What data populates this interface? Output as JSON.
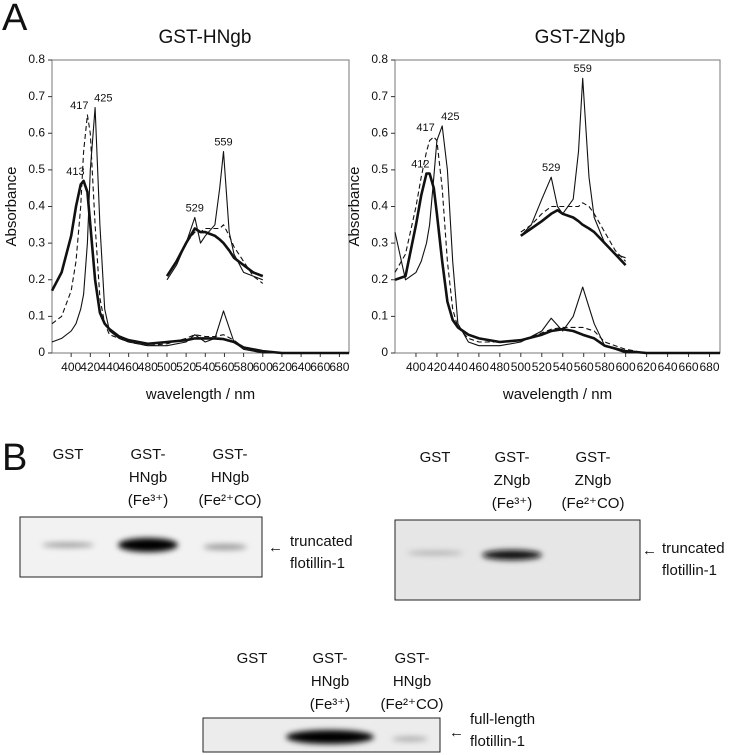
{
  "panel_labels": [
    "A",
    "B"
  ],
  "chart_data": [
    {
      "type": "line",
      "title": "GST-HNgb",
      "x_label": "wavelength / nm",
      "y_label": "Absorbance",
      "xlim": [
        380,
        690
      ],
      "ylim": [
        0,
        0.8
      ],
      "xticks": [
        400,
        420,
        440,
        460,
        480,
        500,
        520,
        540,
        560,
        580,
        600,
        620,
        640,
        660,
        680
      ],
      "yticks": [
        0,
        0.1,
        0.2,
        0.3,
        0.4,
        0.5,
        0.6,
        0.7,
        0.8
      ],
      "x": [
        380,
        390,
        400,
        405,
        410,
        413,
        417,
        420,
        425,
        430,
        435,
        440,
        450,
        460,
        480,
        500,
        520,
        529,
        540,
        550,
        559,
        570,
        580,
        600,
        620,
        640,
        660,
        680,
        690
      ],
      "series": [
        {
          "color": "#111111",
          "line_width": 2.6,
          "dash": false,
          "values": [
            0.17,
            0.22,
            0.32,
            0.4,
            0.46,
            0.47,
            0.44,
            0.35,
            0.2,
            0.11,
            0.08,
            0.065,
            0.045,
            0.035,
            0.025,
            0.03,
            0.035,
            0.04,
            0.04,
            0.04,
            0.038,
            0.03,
            0.015,
            0.005,
            0,
            0,
            0,
            0,
            0
          ]
        },
        {
          "color": "#111111",
          "line_width": 1.1,
          "dash": false,
          "values": [
            0.03,
            0.04,
            0.06,
            0.08,
            0.12,
            0.16,
            0.3,
            0.5,
            0.67,
            0.35,
            0.12,
            0.06,
            0.04,
            0.03,
            0.02,
            0.02,
            0.03,
            0.05,
            0.03,
            0.04,
            0.115,
            0.03,
            0.01,
            0,
            0,
            0,
            0,
            0,
            0
          ]
        },
        {
          "color": "#111111",
          "line_width": 1.1,
          "dash": true,
          "values": [
            0.08,
            0.1,
            0.17,
            0.25,
            0.4,
            0.55,
            0.65,
            0.6,
            0.35,
            0.15,
            0.08,
            0.05,
            0.04,
            0.03,
            0.02,
            0.025,
            0.04,
            0.05,
            0.045,
            0.045,
            0.05,
            0.035,
            0.015,
            0,
            0,
            0,
            0,
            0,
            0
          ]
        },
        {
          "color": "#111111",
          "line_width": 2.6,
          "dash": false,
          "x": [
            500,
            510,
            520,
            529,
            535,
            540,
            550,
            555,
            559,
            565,
            570,
            580,
            590,
            600
          ],
          "values": [
            0.21,
            0.25,
            0.3,
            0.34,
            0.33,
            0.33,
            0.32,
            0.31,
            0.3,
            0.28,
            0.26,
            0.24,
            0.22,
            0.21
          ]
        },
        {
          "color": "#111111",
          "line_width": 1.1,
          "dash": false,
          "x": [
            500,
            510,
            520,
            529,
            535,
            540,
            550,
            555,
            559,
            565,
            570,
            580,
            590,
            600
          ],
          "values": [
            0.2,
            0.24,
            0.3,
            0.37,
            0.3,
            0.32,
            0.35,
            0.45,
            0.55,
            0.33,
            0.27,
            0.22,
            0.21,
            0.2
          ]
        },
        {
          "color": "#111111",
          "line_width": 1.1,
          "dash": true,
          "x": [
            500,
            510,
            520,
            529,
            535,
            540,
            550,
            555,
            559,
            565,
            570,
            580,
            590,
            600
          ],
          "values": [
            0.21,
            0.25,
            0.3,
            0.33,
            0.33,
            0.34,
            0.34,
            0.34,
            0.35,
            0.32,
            0.29,
            0.25,
            0.21,
            0.19
          ]
        }
      ],
      "annotations": [
        {
          "text": "413",
          "x": 413,
          "y": 0.47
        },
        {
          "text": "417",
          "x": 417,
          "y": 0.65
        },
        {
          "text": "425",
          "x": 425,
          "y": 0.67
        },
        {
          "text": "529",
          "x": 529,
          "y": 0.37
        },
        {
          "text": "559",
          "x": 559,
          "y": 0.55
        }
      ]
    },
    {
      "type": "line",
      "title": "GST-ZNgb",
      "x_label": "wavelength / nm",
      "y_label": "Absorbance",
      "xlim": [
        380,
        690
      ],
      "ylim": [
        0,
        0.8
      ],
      "xticks": [
        400,
        420,
        440,
        460,
        480,
        500,
        520,
        540,
        560,
        580,
        600,
        620,
        640,
        660,
        680
      ],
      "yticks": [
        0,
        0.1,
        0.2,
        0.3,
        0.4,
        0.5,
        0.6,
        0.7,
        0.8
      ],
      "x": [
        380,
        390,
        400,
        405,
        410,
        413,
        417,
        420,
        425,
        430,
        435,
        440,
        450,
        460,
        480,
        500,
        520,
        529,
        540,
        550,
        559,
        570,
        580,
        600,
        620,
        640,
        660,
        680,
        690
      ],
      "series": [
        {
          "color": "#111111",
          "line_width": 2.6,
          "dash": false,
          "values": [
            0.2,
            0.21,
            0.35,
            0.43,
            0.49,
            0.49,
            0.45,
            0.38,
            0.25,
            0.14,
            0.09,
            0.07,
            0.05,
            0.04,
            0.03,
            0.035,
            0.05,
            0.06,
            0.065,
            0.06,
            0.05,
            0.04,
            0.02,
            0.005,
            0,
            0,
            0,
            0,
            0
          ]
        },
        {
          "color": "#111111",
          "line_width": 1.1,
          "dash": false,
          "values": [
            0.33,
            0.2,
            0.22,
            0.25,
            0.3,
            0.35,
            0.48,
            0.58,
            0.62,
            0.5,
            0.25,
            0.08,
            0.03,
            0.02,
            0.02,
            0.03,
            0.06,
            0.095,
            0.06,
            0.1,
            0.18,
            0.08,
            0.02,
            0,
            0,
            0,
            0,
            0,
            0
          ]
        },
        {
          "color": "#111111",
          "line_width": 1.1,
          "dash": true,
          "values": [
            0.22,
            0.27,
            0.4,
            0.48,
            0.55,
            0.58,
            0.59,
            0.58,
            0.45,
            0.25,
            0.12,
            0.07,
            0.04,
            0.03,
            0.03,
            0.035,
            0.055,
            0.065,
            0.07,
            0.07,
            0.07,
            0.06,
            0.03,
            0.01,
            0,
            0,
            0,
            0,
            0
          ]
        },
        {
          "color": "#111111",
          "line_width": 2.6,
          "dash": false,
          "x": [
            500,
            510,
            520,
            529,
            535,
            540,
            550,
            555,
            559,
            565,
            570,
            580,
            590,
            600
          ],
          "values": [
            0.32,
            0.34,
            0.36,
            0.38,
            0.39,
            0.38,
            0.37,
            0.36,
            0.35,
            0.34,
            0.33,
            0.3,
            0.27,
            0.24
          ]
        },
        {
          "color": "#111111",
          "line_width": 1.1,
          "dash": false,
          "x": [
            500,
            510,
            520,
            529,
            535,
            540,
            550,
            555,
            559,
            565,
            570,
            580,
            590,
            600
          ],
          "values": [
            0.32,
            0.35,
            0.42,
            0.48,
            0.4,
            0.38,
            0.42,
            0.55,
            0.75,
            0.48,
            0.37,
            0.3,
            0.27,
            0.26
          ]
        },
        {
          "color": "#111111",
          "line_width": 1.1,
          "dash": true,
          "x": [
            500,
            510,
            520,
            529,
            535,
            540,
            550,
            555,
            559,
            565,
            570,
            580,
            590,
            600
          ],
          "values": [
            0.33,
            0.35,
            0.38,
            0.4,
            0.4,
            0.4,
            0.4,
            0.4,
            0.41,
            0.4,
            0.38,
            0.33,
            0.28,
            0.25
          ]
        }
      ],
      "annotations": [
        {
          "text": "412",
          "x": 412,
          "y": 0.49
        },
        {
          "text": "417",
          "x": 417,
          "y": 0.59
        },
        {
          "text": "425",
          "x": 425,
          "y": 0.62
        },
        {
          "text": "529",
          "x": 529,
          "y": 0.48
        },
        {
          "text": "559",
          "x": 559,
          "y": 0.75
        }
      ]
    }
  ],
  "blots": [
    {
      "lanes": [
        [
          "GST"
        ],
        [
          "GST-",
          "HNgb",
          "(Fe³⁺)"
        ],
        [
          "GST-",
          "HNgb",
          "(Fe²⁺CO)"
        ]
      ],
      "target": [
        "truncated",
        "flotillin-1"
      ]
    },
    {
      "lanes": [
        [
          "GST"
        ],
        [
          "GST-",
          "ZNgb",
          "(Fe³⁺)"
        ],
        [
          "GST-",
          "ZNgb",
          "(Fe²⁺CO)"
        ]
      ],
      "target": [
        "truncated",
        "flotillin-1"
      ]
    },
    {
      "lanes": [
        [
          "GST"
        ],
        [
          "GST-",
          "HNgb",
          "(Fe³⁺)"
        ],
        [
          "GST-",
          "HNgb",
          "(Fe²⁺CO)"
        ]
      ],
      "target": [
        "full-length",
        "flotillin-1"
      ]
    }
  ]
}
